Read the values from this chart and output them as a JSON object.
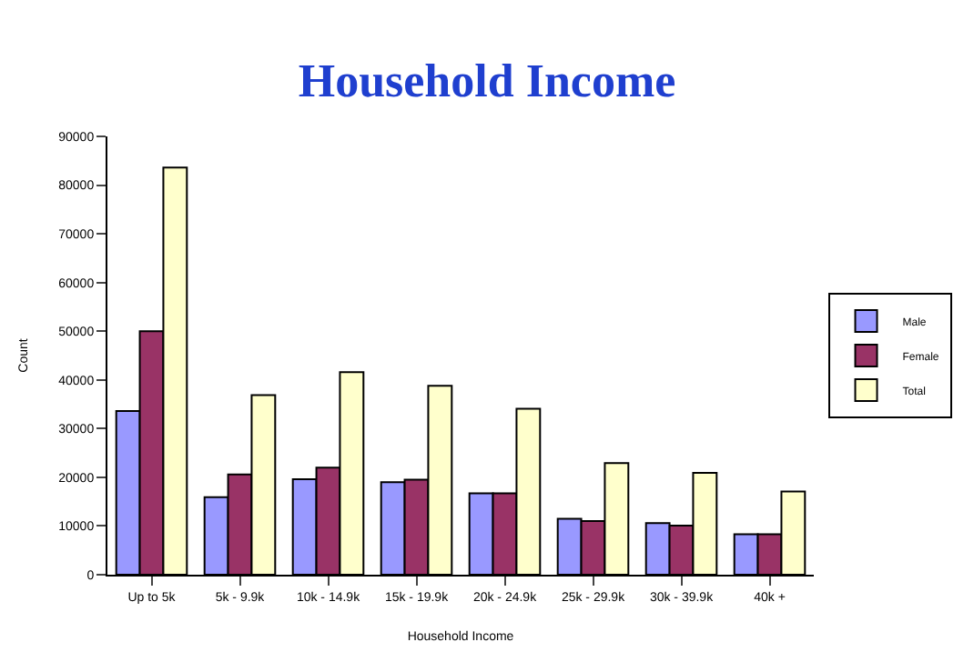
{
  "chart_data": {
    "type": "bar",
    "title": "Household Income",
    "xlabel": "Household Income",
    "ylabel": "Count",
    "categories": [
      "Up to 5k",
      "5k - 9.9k",
      "10k - 14.9k",
      "15k - 19.9k",
      "20k - 24.9k",
      "25k - 29.9k",
      "30k - 39.9k",
      "40k +"
    ],
    "series": [
      {
        "name": "Male",
        "color": "#9999ff",
        "values": [
          33600,
          15900,
          19600,
          19000,
          16700,
          11500,
          10600,
          8300
        ]
      },
      {
        "name": "Female",
        "color": "#993366",
        "values": [
          50000,
          20600,
          22000,
          19500,
          16700,
          11000,
          10100,
          8300
        ]
      },
      {
        "name": "Total",
        "color": "#ffffcc",
        "values": [
          83600,
          36900,
          41600,
          38800,
          34100,
          22900,
          20900,
          17100
        ]
      }
    ],
    "ylim": [
      0,
      90000
    ],
    "yticks": [
      0,
      10000,
      20000,
      30000,
      40000,
      50000,
      60000,
      70000,
      80000,
      90000
    ],
    "grid": false,
    "legend": "right"
  }
}
